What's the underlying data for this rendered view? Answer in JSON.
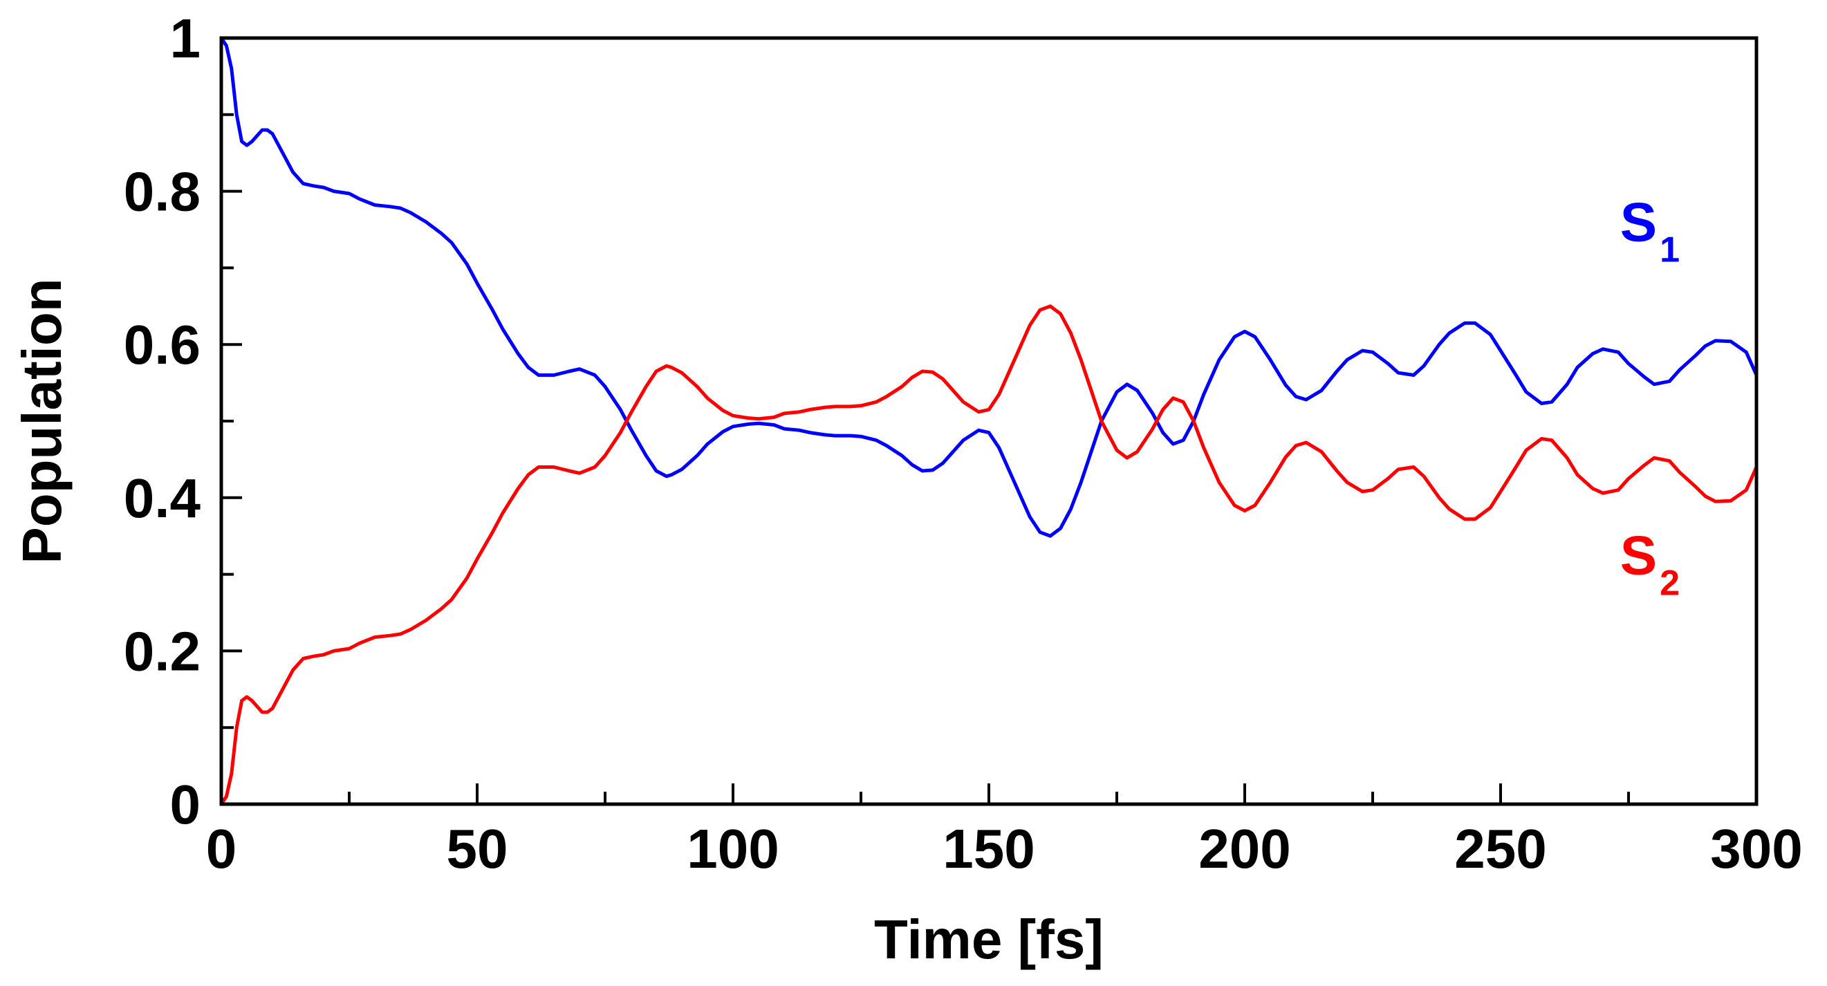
{
  "chart_data": {
    "type": "line",
    "title": "",
    "xlabel": "Time [fs]",
    "ylabel": "Population",
    "xlim": [
      0,
      300
    ],
    "ylim": [
      0,
      1
    ],
    "grid": false,
    "legend_placement": "inline-right",
    "x_ticks": [
      0,
      50,
      100,
      150,
      200,
      250,
      300
    ],
    "x_tick_labels": [
      "0",
      "50",
      "100",
      "150",
      "200",
      "250",
      "300"
    ],
    "y_ticks": [
      0,
      0.2,
      0.4,
      0.6,
      0.8,
      1
    ],
    "y_tick_labels": [
      "0",
      "0.2",
      "0.4",
      "0.6",
      "0.8",
      "1"
    ],
    "x_minor_step": 25,
    "y_minor_step": 0.1,
    "series": [
      {
        "name": "S1",
        "label_main": "S",
        "label_sub": "1",
        "color": "#0000ff",
        "x": [
          0,
          1,
          2,
          3,
          4,
          5,
          6,
          8,
          9,
          10,
          12,
          14,
          16,
          18,
          20,
          22,
          25,
          27,
          30,
          33,
          35,
          37,
          40,
          43,
          45,
          48,
          50,
          53,
          55,
          58,
          60,
          62,
          65,
          68,
          70,
          73,
          75,
          78,
          80,
          83,
          85,
          87,
          88,
          90,
          93,
          95,
          98,
          100,
          103,
          105,
          108,
          110,
          113,
          115,
          118,
          120,
          123,
          125,
          128,
          130,
          133,
          135,
          137,
          139,
          141,
          143,
          145,
          148,
          150,
          152,
          155,
          158,
          160,
          162,
          164,
          166,
          168,
          170,
          172,
          175,
          177,
          179,
          182,
          184,
          186,
          188,
          190,
          192,
          195,
          198,
          200,
          202,
          205,
          208,
          210,
          212,
          215,
          218,
          220,
          223,
          225,
          228,
          230,
          233,
          235,
          238,
          240,
          243,
          245,
          248,
          250,
          253,
          255,
          258,
          260,
          263,
          265,
          268,
          270,
          273,
          275,
          278,
          280,
          283,
          285,
          288,
          290,
          292,
          295,
          298,
          300
        ],
        "y": [
          1.0,
          0.99,
          0.96,
          0.9,
          0.865,
          0.86,
          0.865,
          0.88,
          0.88,
          0.875,
          0.85,
          0.825,
          0.81,
          0.807,
          0.805,
          0.8,
          0.797,
          0.79,
          0.782,
          0.78,
          0.778,
          0.772,
          0.76,
          0.745,
          0.733,
          0.705,
          0.68,
          0.645,
          0.62,
          0.588,
          0.57,
          0.56,
          0.56,
          0.565,
          0.568,
          0.56,
          0.545,
          0.515,
          0.49,
          0.455,
          0.435,
          0.428,
          0.43,
          0.437,
          0.455,
          0.47,
          0.486,
          0.493,
          0.496,
          0.497,
          0.495,
          0.49,
          0.488,
          0.485,
          0.482,
          0.481,
          0.481,
          0.48,
          0.475,
          0.468,
          0.455,
          0.443,
          0.435,
          0.436,
          0.445,
          0.46,
          0.475,
          0.488,
          0.485,
          0.465,
          0.42,
          0.375,
          0.355,
          0.35,
          0.36,
          0.385,
          0.42,
          0.46,
          0.5,
          0.538,
          0.548,
          0.54,
          0.51,
          0.485,
          0.47,
          0.475,
          0.5,
          0.535,
          0.58,
          0.61,
          0.617,
          0.61,
          0.58,
          0.547,
          0.532,
          0.528,
          0.54,
          0.565,
          0.58,
          0.592,
          0.59,
          0.575,
          0.563,
          0.56,
          0.572,
          0.6,
          0.615,
          0.628,
          0.628,
          0.613,
          0.592,
          0.56,
          0.538,
          0.523,
          0.525,
          0.548,
          0.57,
          0.588,
          0.594,
          0.59,
          0.575,
          0.558,
          0.548,
          0.552,
          0.567,
          0.585,
          0.598,
          0.605,
          0.604,
          0.59,
          0.56
        ],
        "legend_anchor": [
          285,
          0.735
        ]
      },
      {
        "name": "S2",
        "label_main": "S",
        "label_sub": "2",
        "color": "#ff0000",
        "x": [
          0,
          1,
          2,
          3,
          4,
          5,
          6,
          8,
          9,
          10,
          12,
          14,
          16,
          18,
          20,
          22,
          25,
          27,
          30,
          33,
          35,
          37,
          40,
          43,
          45,
          48,
          50,
          53,
          55,
          58,
          60,
          62,
          65,
          68,
          70,
          73,
          75,
          78,
          80,
          83,
          85,
          87,
          88,
          90,
          93,
          95,
          98,
          100,
          103,
          105,
          108,
          110,
          113,
          115,
          118,
          120,
          123,
          125,
          128,
          130,
          133,
          135,
          137,
          139,
          141,
          143,
          145,
          148,
          150,
          152,
          155,
          158,
          160,
          162,
          164,
          166,
          168,
          170,
          172,
          175,
          177,
          179,
          182,
          184,
          186,
          188,
          190,
          192,
          195,
          198,
          200,
          202,
          205,
          208,
          210,
          212,
          215,
          218,
          220,
          223,
          225,
          228,
          230,
          233,
          235,
          238,
          240,
          243,
          245,
          248,
          250,
          253,
          255,
          258,
          260,
          263,
          265,
          268,
          270,
          273,
          275,
          278,
          280,
          283,
          285,
          288,
          290,
          292,
          295,
          298,
          300
        ],
        "y": [
          0.0,
          0.01,
          0.04,
          0.1,
          0.135,
          0.14,
          0.135,
          0.12,
          0.12,
          0.125,
          0.15,
          0.175,
          0.19,
          0.193,
          0.195,
          0.2,
          0.203,
          0.21,
          0.218,
          0.22,
          0.222,
          0.228,
          0.24,
          0.255,
          0.267,
          0.295,
          0.32,
          0.355,
          0.38,
          0.412,
          0.43,
          0.44,
          0.44,
          0.435,
          0.432,
          0.44,
          0.455,
          0.485,
          0.51,
          0.545,
          0.565,
          0.572,
          0.57,
          0.563,
          0.545,
          0.53,
          0.514,
          0.507,
          0.504,
          0.503,
          0.505,
          0.51,
          0.512,
          0.515,
          0.518,
          0.519,
          0.519,
          0.52,
          0.525,
          0.532,
          0.545,
          0.557,
          0.565,
          0.564,
          0.555,
          0.54,
          0.525,
          0.512,
          0.515,
          0.535,
          0.58,
          0.625,
          0.645,
          0.65,
          0.64,
          0.615,
          0.58,
          0.54,
          0.5,
          0.462,
          0.452,
          0.46,
          0.49,
          0.515,
          0.53,
          0.525,
          0.5,
          0.465,
          0.42,
          0.39,
          0.383,
          0.39,
          0.42,
          0.453,
          0.468,
          0.472,
          0.46,
          0.435,
          0.42,
          0.408,
          0.41,
          0.425,
          0.437,
          0.44,
          0.428,
          0.4,
          0.385,
          0.372,
          0.372,
          0.387,
          0.408,
          0.44,
          0.462,
          0.477,
          0.475,
          0.452,
          0.43,
          0.412,
          0.406,
          0.41,
          0.425,
          0.442,
          0.452,
          0.448,
          0.433,
          0.415,
          0.402,
          0.395,
          0.396,
          0.41,
          0.44
        ],
        "legend_anchor": [
          285,
          0.3
        ]
      }
    ]
  }
}
